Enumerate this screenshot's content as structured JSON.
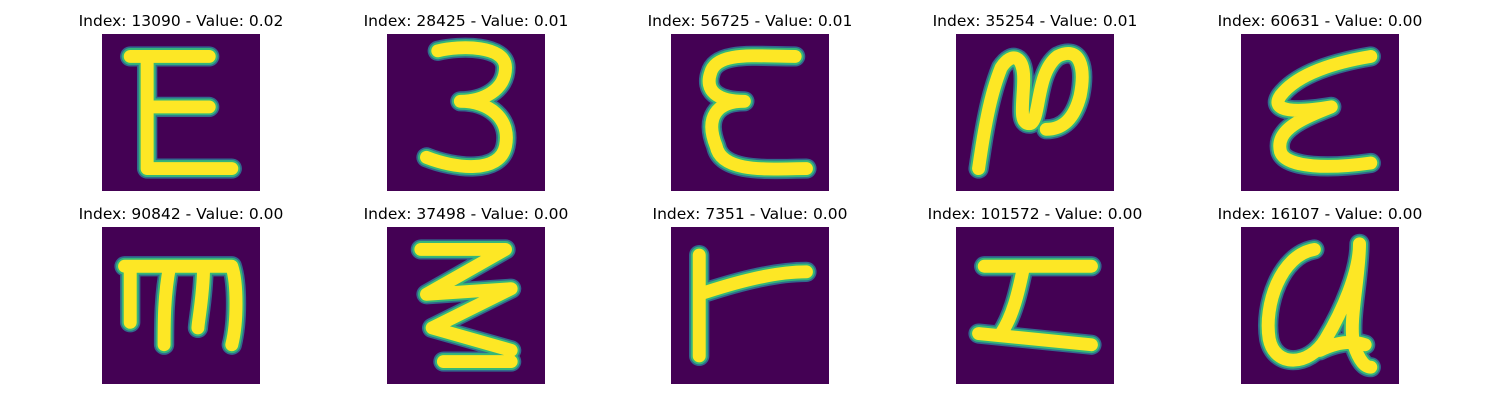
{
  "colors": {
    "background": "#440154",
    "glyph_core": "#fde725",
    "glyph_edge": "#35b779",
    "glyph_outer": "#31688e"
  },
  "tiles": [
    {
      "title": "Index: 13090 - Value: 0.02"
    },
    {
      "title": "Index: 28425 - Value: 0.01"
    },
    {
      "title": "Index: 56725 - Value: 0.01"
    },
    {
      "title": "Index: 35254 - Value: 0.01"
    },
    {
      "title": "Index: 60631 - Value: 0.00"
    },
    {
      "title": "Index: 90842 - Value: 0.00"
    },
    {
      "title": "Index: 37498 - Value: 0.00"
    },
    {
      "title": "Index: 7351 - Value: 0.00"
    },
    {
      "title": "Index: 101572 - Value: 0.00"
    },
    {
      "title": "Index: 16107 - Value: 0.00"
    }
  ]
}
